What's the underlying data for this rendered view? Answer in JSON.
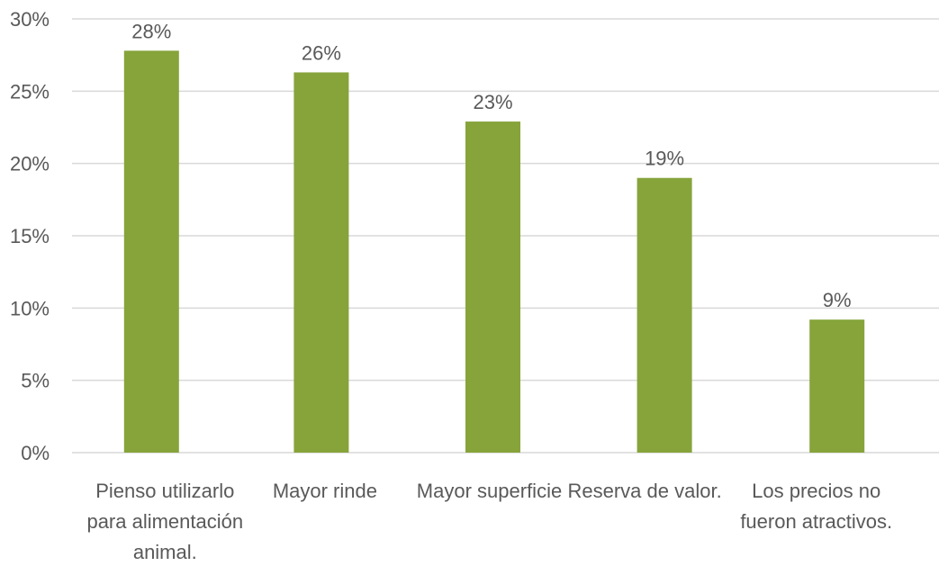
{
  "chart_data": {
    "type": "bar",
    "title": "",
    "xlabel": "",
    "ylabel": "",
    "categories": [
      [
        "Pienso utilizarlo",
        "para alimentación",
        "animal."
      ],
      [
        "Mayor rinde"
      ],
      [
        "Mayor superficie"
      ],
      [
        "Reserva de valor."
      ],
      [
        "Los precios no",
        "fueron atractivos."
      ]
    ],
    "values": [
      27.8,
      26.3,
      22.9,
      19.0,
      9.2
    ],
    "data_labels": [
      "28%",
      "26%",
      "23%",
      "19%",
      "9%"
    ],
    "ylim": [
      0,
      30
    ],
    "yticks": [
      0,
      5,
      10,
      15,
      20,
      25,
      30
    ],
    "ytick_labels": [
      "0%",
      "5%",
      "10%",
      "15%",
      "20%",
      "25%",
      "30%"
    ],
    "grid": true,
    "legend": "none",
    "bar_color": "#86a43a"
  }
}
